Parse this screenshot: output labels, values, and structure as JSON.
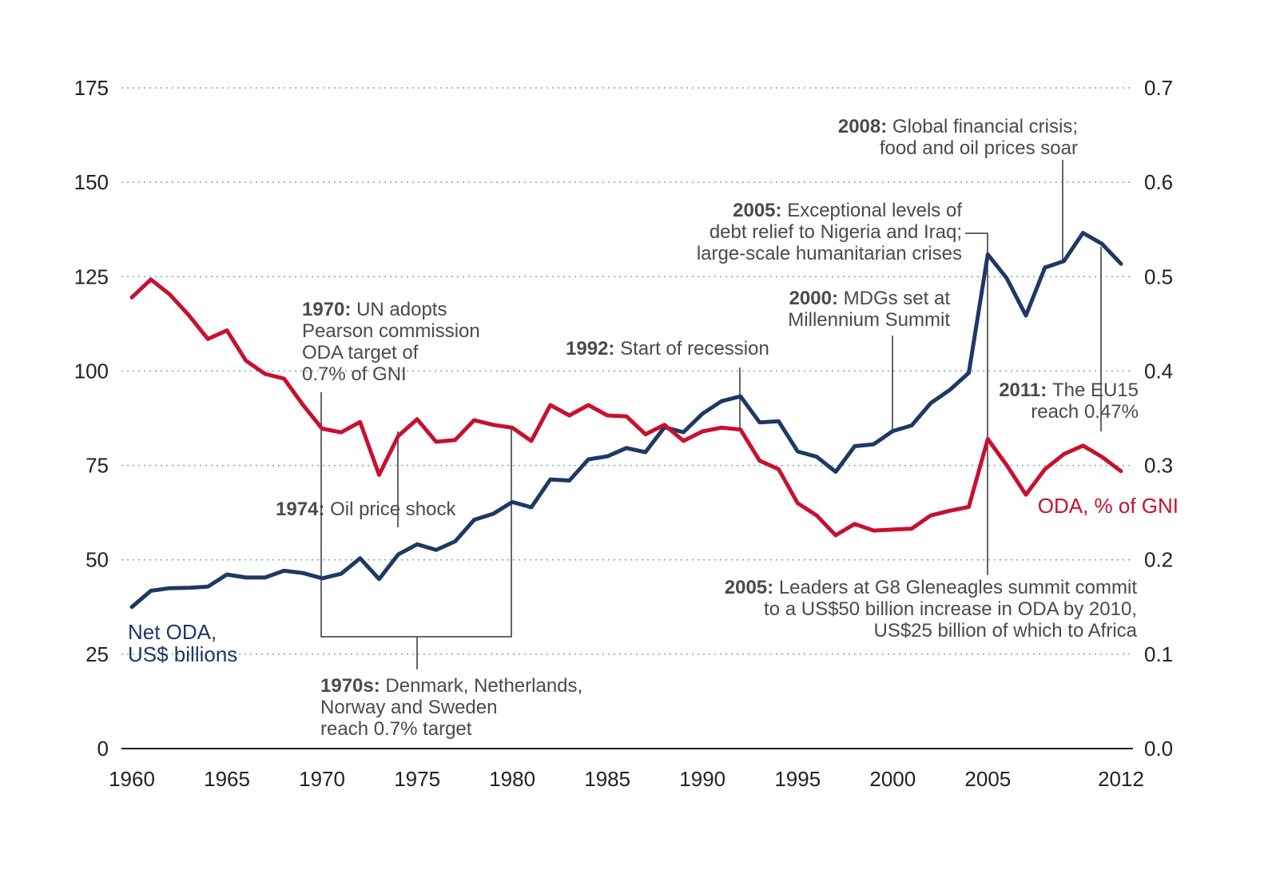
{
  "chart_data": {
    "type": "line",
    "x": [
      1960,
      1961,
      1962,
      1963,
      1964,
      1965,
      1966,
      1967,
      1968,
      1969,
      1970,
      1971,
      1972,
      1973,
      1974,
      1975,
      1976,
      1977,
      1978,
      1979,
      1980,
      1981,
      1982,
      1983,
      1984,
      1985,
      1986,
      1987,
      1988,
      1989,
      1990,
      1991,
      1992,
      1993,
      1994,
      1995,
      1996,
      1997,
      1998,
      1999,
      2000,
      2001,
      2002,
      2003,
      2004,
      2005,
      2006,
      2007,
      2008,
      2009,
      2010,
      2011,
      2012
    ],
    "x_ticks": [
      "1960",
      "1965",
      "1970",
      "1975",
      "1980",
      "1985",
      "1990",
      "1995",
      "2000",
      "2005",
      "2012"
    ],
    "y_left_ticks": [
      "0",
      "25",
      "50",
      "75",
      "100",
      "125",
      "150",
      "175"
    ],
    "y_right_ticks": [
      "0.0",
      "0.1",
      "0.2",
      "0.3",
      "0.4",
      "0.5",
      "0.6",
      "0.7"
    ],
    "ylim_left": [
      0,
      175
    ],
    "ylim_right": [
      0,
      0.7
    ],
    "grid": true,
    "series": [
      {
        "name_lines": [
          "Net ODA,",
          "US$ billions"
        ],
        "axis": "left",
        "color": "#1f3864",
        "values": [
          37.5,
          41.8,
          42.5,
          42.6,
          42.9,
          46.1,
          45.3,
          45.3,
          47.1,
          46.5,
          45.1,
          46.3,
          50.4,
          44.9,
          51.4,
          54.1,
          52.6,
          54.9,
          60.6,
          62.2,
          65.3,
          63.9,
          71.3,
          71.0,
          76.6,
          77.4,
          79.6,
          78.5,
          85.1,
          83.8,
          88.7,
          92.0,
          93.3,
          86.4,
          86.7,
          78.7,
          77.3,
          73.3,
          80.1,
          80.6,
          84.1,
          85.6,
          91.5,
          95.0,
          99.5,
          130.9,
          124.5,
          114.7,
          127.4,
          129.1,
          136.6,
          133.7,
          128.4
        ]
      },
      {
        "name": "ODA, % of GNI",
        "axis": "right",
        "color": "#c8102e",
        "values": [
          0.478,
          0.497,
          0.481,
          0.459,
          0.434,
          0.443,
          0.411,
          0.397,
          0.392,
          0.364,
          0.339,
          0.335,
          0.346,
          0.29,
          0.331,
          0.349,
          0.325,
          0.327,
          0.348,
          0.343,
          0.34,
          0.326,
          0.364,
          0.353,
          0.364,
          0.353,
          0.352,
          0.333,
          0.343,
          0.326,
          0.336,
          0.34,
          0.338,
          0.305,
          0.296,
          0.26,
          0.247,
          0.226,
          0.238,
          0.231,
          0.232,
          0.233,
          0.247,
          0.252,
          0.256,
          0.328,
          0.3,
          0.269,
          0.296,
          0.312,
          0.321,
          0.309,
          0.294
        ]
      }
    ],
    "annotations": [
      {
        "year": "1970:",
        "lines": [
          "UN adopts",
          "Pearson commission",
          "ODA target of",
          "0.7% of GNI"
        ]
      },
      {
        "year": "1974:",
        "lines": [
          "Oil price shock"
        ]
      },
      {
        "year": "1970s:",
        "lines": [
          "Denmark, Netherlands,",
          "Norway and Sweden",
          "reach 0.7% target"
        ]
      },
      {
        "year": "1992:",
        "lines": [
          "Start of recession"
        ]
      },
      {
        "year": "2000:",
        "lines": [
          "MDGs set at",
          "Millennium Summit"
        ]
      },
      {
        "year": "2005:",
        "lines": [
          "Exceptional levels of",
          "debt relief to Nigeria and Iraq;",
          "large-scale humanitarian crises"
        ]
      },
      {
        "year": "2008:",
        "lines": [
          "Global financial crisis;",
          "food and oil prices soar"
        ]
      },
      {
        "year": "2011:",
        "lines": [
          "The EU15",
          "reach 0.47%"
        ]
      },
      {
        "year": "2005:",
        "lines": [
          "Leaders at G8 Gleneagles summit commit",
          "to a US$50 billion increase in ODA by 2010,",
          "US$25 billion of which to Africa"
        ]
      }
    ]
  }
}
